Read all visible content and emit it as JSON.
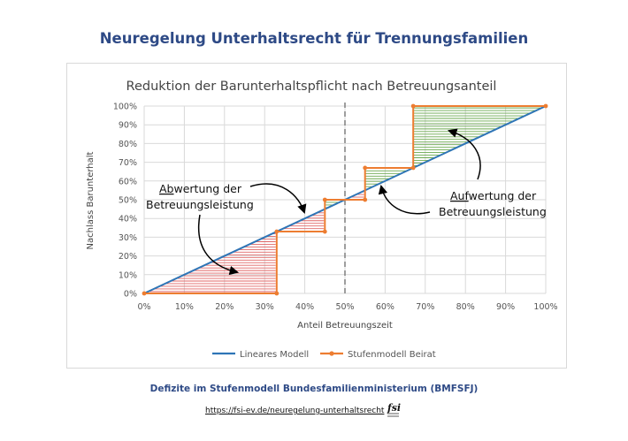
{
  "page": {
    "title": "Neuregelung Unterhaltsrecht für Trennungsfamilien",
    "caption": "Defizite im Stufenmodell Bundesfamilienministerium (BMFSFJ)",
    "url": "https://fsi-ev.de/neuregelung-unterhaltsrecht",
    "logo_text": "fsi"
  },
  "chart_data": {
    "type": "line",
    "title": "Reduktion der Barunterhaltspflicht nach Betreuungsanteil",
    "xlabel": "Anteil Betreuungszeit",
    "ylabel": "Nachlass Barunterhalt",
    "xlim": [
      0,
      100
    ],
    "ylim": [
      0,
      100
    ],
    "x_ticks": [
      "0%",
      "10%",
      "20%",
      "30%",
      "40%",
      "50%",
      "60%",
      "70%",
      "80%",
      "90%",
      "100%"
    ],
    "y_ticks": [
      "0%",
      "10%",
      "20%",
      "30%",
      "40%",
      "50%",
      "60%",
      "70%",
      "80%",
      "90%",
      "100%"
    ],
    "grid": true,
    "legend_position": "bottom",
    "series": [
      {
        "name": "Lineares Modell",
        "color": "#2e75b6",
        "x": [
          0,
          100
        ],
        "y": [
          0,
          100
        ]
      },
      {
        "name": "Stufenmodell Beirat",
        "color": "#ed7d31",
        "x": [
          0,
          33,
          33,
          45,
          45,
          55,
          55,
          67,
          67,
          100
        ],
        "y": [
          0,
          0,
          33,
          33,
          50,
          50,
          67,
          67,
          100,
          100
        ]
      }
    ],
    "reference_line": {
      "x": 50,
      "style": "dashed",
      "color": "#7f7f7f"
    },
    "shaded_deficit_color": "#e06666",
    "shaded_surplus_color": "#6aa84f",
    "annotations": [
      {
        "label_first": "Ab",
        "label_rest": "wertung der",
        "line2": "Betreuungsleistung"
      },
      {
        "label_first": "Auf",
        "label_rest": "wertung der",
        "line2": "Betreuungsleistung"
      }
    ]
  }
}
